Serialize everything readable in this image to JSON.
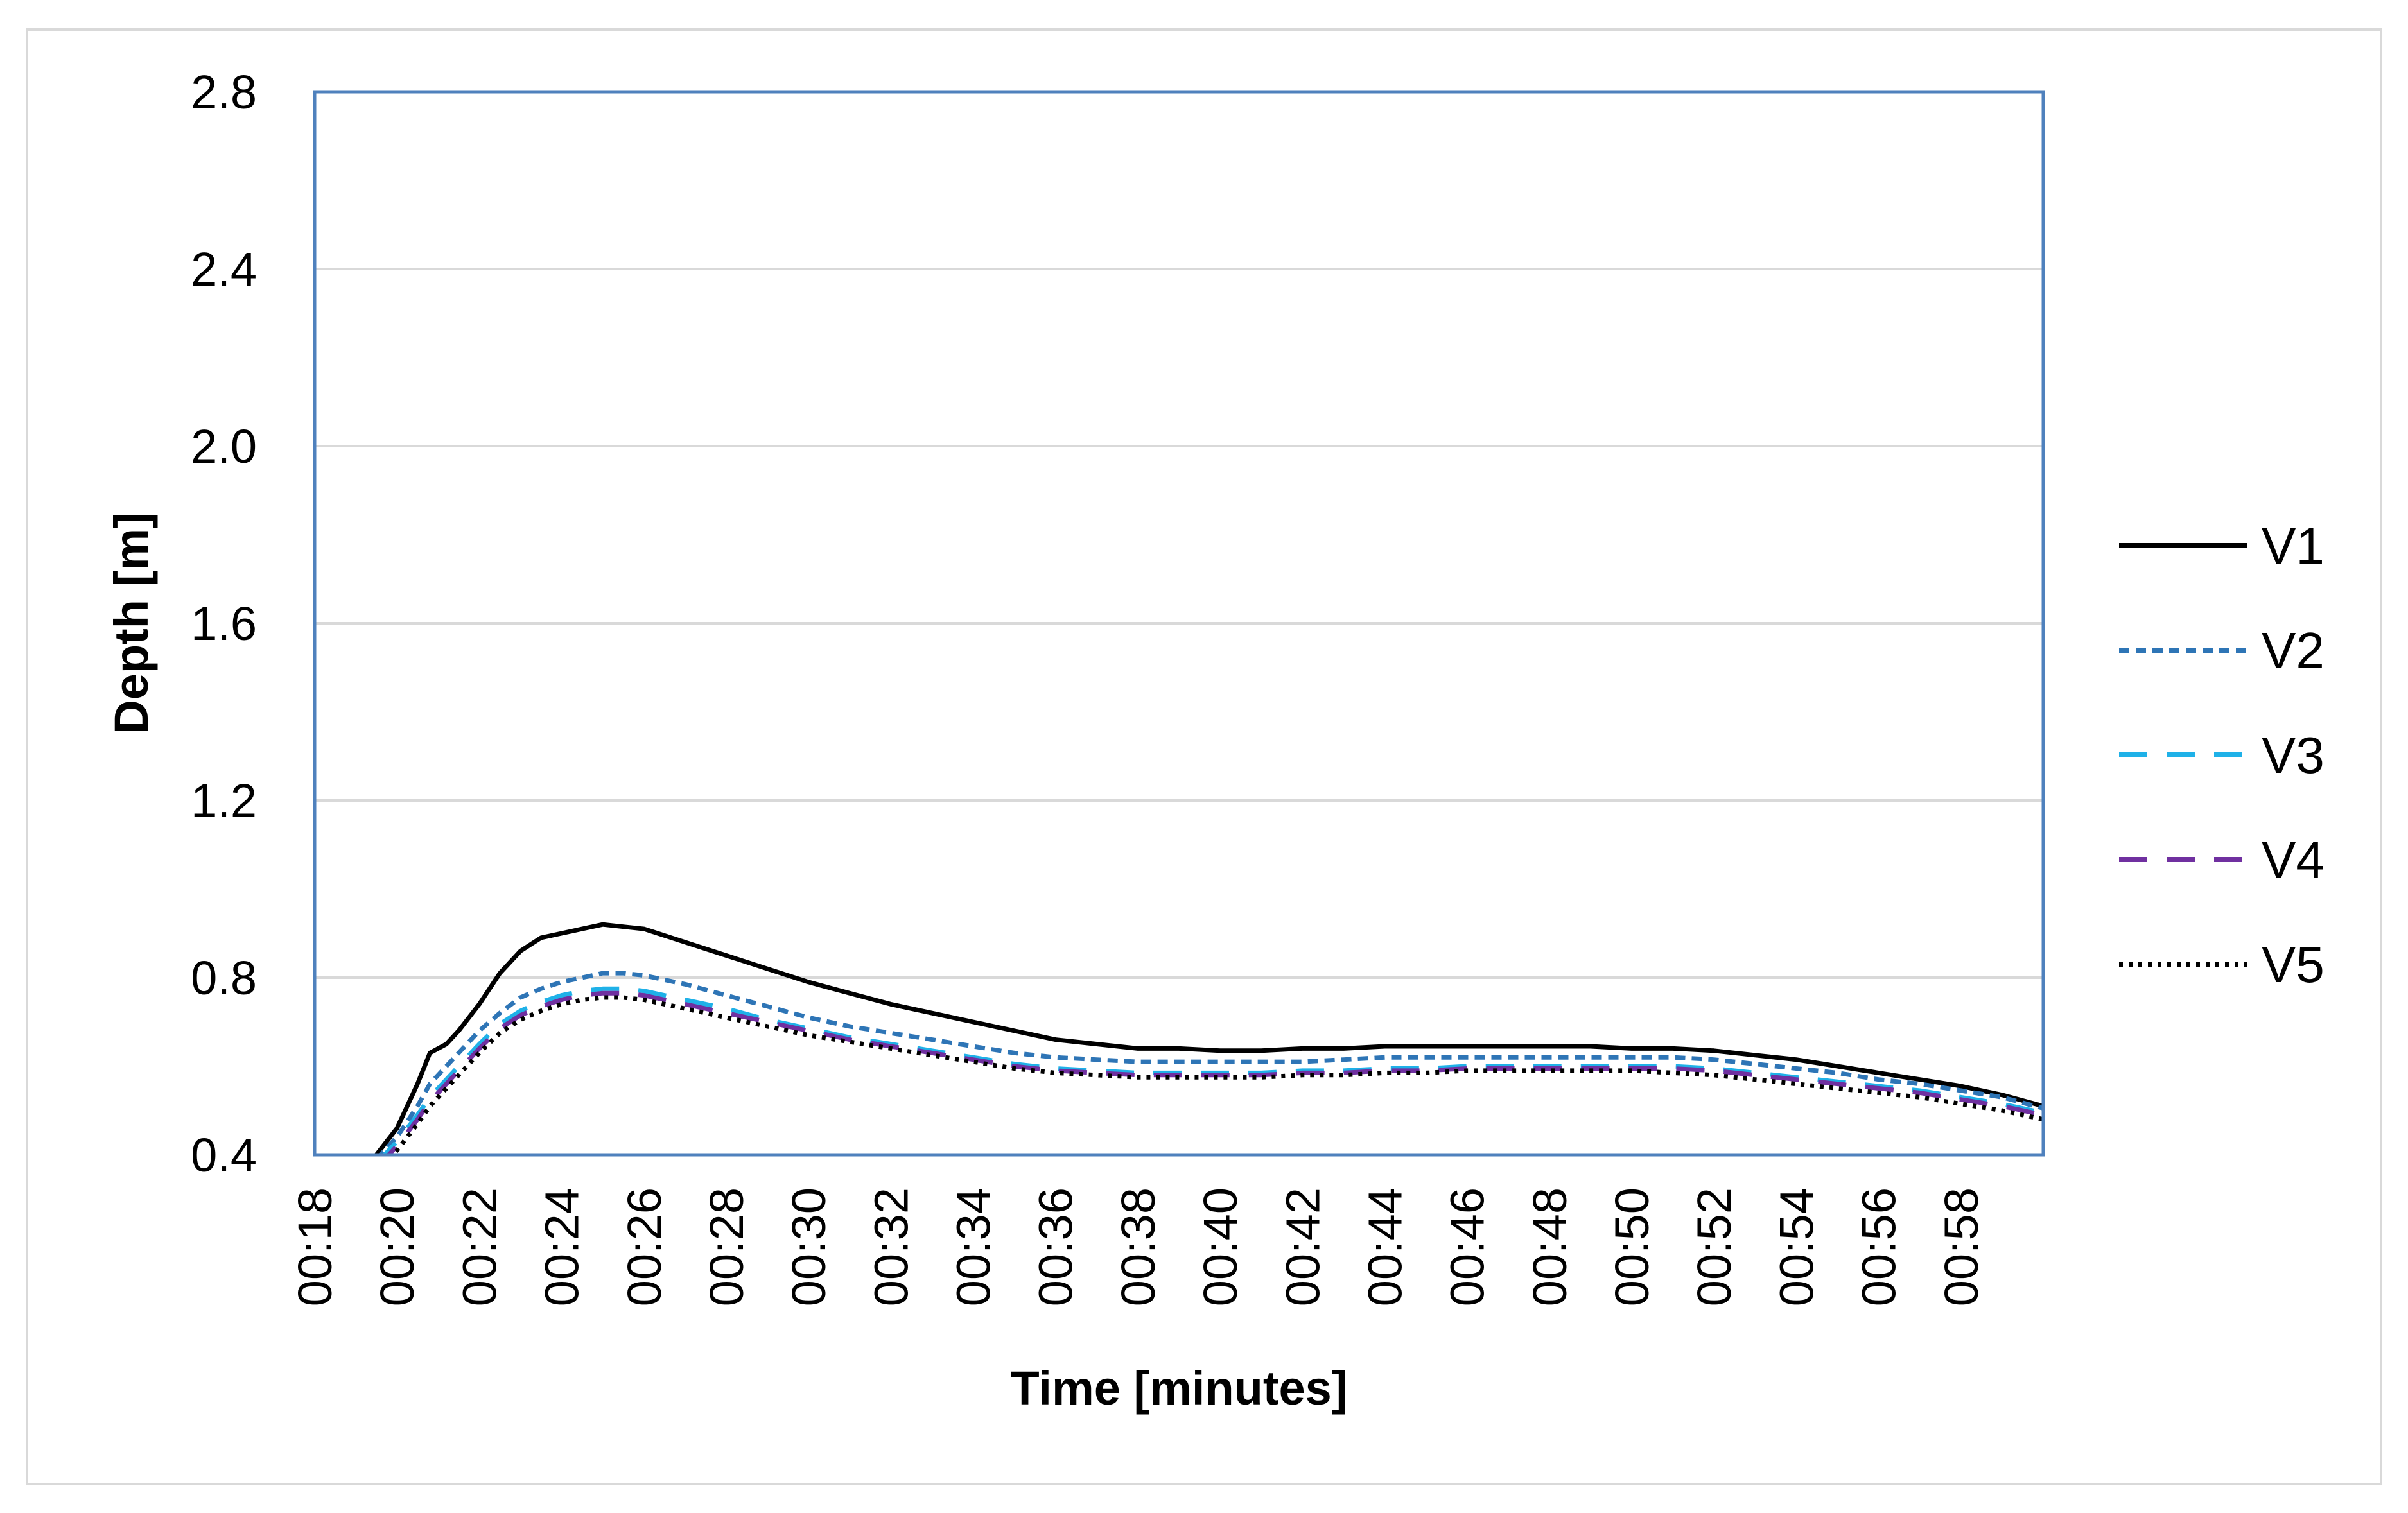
{
  "chart_data": {
    "type": "line",
    "title": "",
    "xlabel": "Time [minutes]",
    "ylabel": "Depth [m]",
    "x_ticks": [
      "00:18",
      "00:20",
      "00:22",
      "00:24",
      "00:26",
      "00:28",
      "00:30",
      "00:32",
      "00:34",
      "00:36",
      "00:38",
      "00:40",
      "00:42",
      "00:44",
      "00:46",
      "00:48",
      "00:50",
      "00:52",
      "00:54",
      "00:56",
      "00:58"
    ],
    "xlim": [
      18,
      60
    ],
    "ylim": [
      0.4,
      2.8
    ],
    "y_ticks": [
      "0.4",
      "0.8",
      "1.2",
      "1.6",
      "2.0",
      "2.4",
      "2.8"
    ],
    "grid": true,
    "legend_position": "right",
    "x": [
      19.5,
      20.0,
      20.5,
      20.8,
      21.2,
      21.5,
      22.0,
      22.5,
      23.0,
      23.5,
      24.0,
      24.5,
      25.0,
      25.5,
      26.0,
      27.0,
      28.0,
      29.0,
      30.0,
      31.0,
      32.0,
      33.0,
      34.0,
      35.0,
      36.0,
      37.0,
      38.0,
      39.0,
      40.0,
      41.0,
      42.0,
      43.0,
      44.0,
      45.0,
      46.0,
      47.0,
      48.0,
      49.0,
      50.0,
      51.0,
      52.0,
      53.0,
      54.0,
      55.0,
      56.0,
      57.0,
      58.0,
      59.0,
      60.0
    ],
    "series": [
      {
        "name": "V1",
        "color": "#000000",
        "dash": "solid",
        "values": [
          0.4,
          0.46,
          0.56,
          0.63,
          0.65,
          0.68,
          0.74,
          0.81,
          0.86,
          0.89,
          0.9,
          0.91,
          0.92,
          0.915,
          0.91,
          0.88,
          0.85,
          0.82,
          0.79,
          0.765,
          0.74,
          0.72,
          0.7,
          0.68,
          0.66,
          0.65,
          0.64,
          0.64,
          0.635,
          0.635,
          0.64,
          0.64,
          0.645,
          0.645,
          0.645,
          0.645,
          0.645,
          0.645,
          0.64,
          0.64,
          0.635,
          0.625,
          0.615,
          0.6,
          0.585,
          0.57,
          0.555,
          0.535,
          0.51
        ]
      },
      {
        "name": "V2",
        "color": "#2e75b6",
        "dash": "short-dash",
        "values": [
          0.39,
          0.44,
          0.51,
          0.56,
          0.6,
          0.63,
          0.68,
          0.72,
          0.755,
          0.775,
          0.79,
          0.8,
          0.81,
          0.81,
          0.805,
          0.785,
          0.76,
          0.735,
          0.71,
          0.69,
          0.675,
          0.66,
          0.645,
          0.63,
          0.62,
          0.615,
          0.61,
          0.61,
          0.61,
          0.61,
          0.61,
          0.615,
          0.62,
          0.62,
          0.62,
          0.62,
          0.62,
          0.62,
          0.62,
          0.62,
          0.615,
          0.605,
          0.595,
          0.585,
          0.57,
          0.56,
          0.545,
          0.53,
          0.505
        ]
      },
      {
        "name": "V3",
        "color": "#1fb1e8",
        "dash": "long-dash",
        "values": [
          0.38,
          0.43,
          0.49,
          0.53,
          0.57,
          0.6,
          0.65,
          0.695,
          0.725,
          0.745,
          0.76,
          0.77,
          0.775,
          0.775,
          0.77,
          0.75,
          0.73,
          0.705,
          0.685,
          0.665,
          0.65,
          0.635,
          0.62,
          0.605,
          0.595,
          0.59,
          0.585,
          0.585,
          0.585,
          0.585,
          0.59,
          0.59,
          0.595,
          0.595,
          0.6,
          0.6,
          0.6,
          0.6,
          0.6,
          0.6,
          0.595,
          0.585,
          0.575,
          0.565,
          0.555,
          0.545,
          0.53,
          0.515,
          0.495
        ]
      },
      {
        "name": "V4",
        "color": "#7030a0",
        "dash": "long-dash",
        "values": [
          0.37,
          0.42,
          0.48,
          0.52,
          0.56,
          0.59,
          0.64,
          0.685,
          0.715,
          0.735,
          0.75,
          0.76,
          0.765,
          0.765,
          0.76,
          0.74,
          0.72,
          0.7,
          0.68,
          0.66,
          0.645,
          0.63,
          0.615,
          0.6,
          0.59,
          0.585,
          0.58,
          0.58,
          0.58,
          0.58,
          0.585,
          0.585,
          0.59,
          0.59,
          0.595,
          0.595,
          0.595,
          0.595,
          0.595,
          0.595,
          0.59,
          0.58,
          0.57,
          0.56,
          0.55,
          0.54,
          0.525,
          0.51,
          0.49
        ]
      },
      {
        "name": "V5",
        "color": "#000000",
        "dash": "dotted",
        "values": [
          0.36,
          0.41,
          0.47,
          0.51,
          0.55,
          0.58,
          0.63,
          0.675,
          0.705,
          0.725,
          0.74,
          0.75,
          0.755,
          0.755,
          0.75,
          0.73,
          0.71,
          0.69,
          0.67,
          0.655,
          0.64,
          0.625,
          0.61,
          0.595,
          0.585,
          0.58,
          0.575,
          0.575,
          0.575,
          0.575,
          0.58,
          0.58,
          0.585,
          0.585,
          0.59,
          0.59,
          0.59,
          0.59,
          0.59,
          0.585,
          0.58,
          0.57,
          0.56,
          0.55,
          0.54,
          0.53,
          0.515,
          0.5,
          0.48
        ]
      }
    ]
  }
}
